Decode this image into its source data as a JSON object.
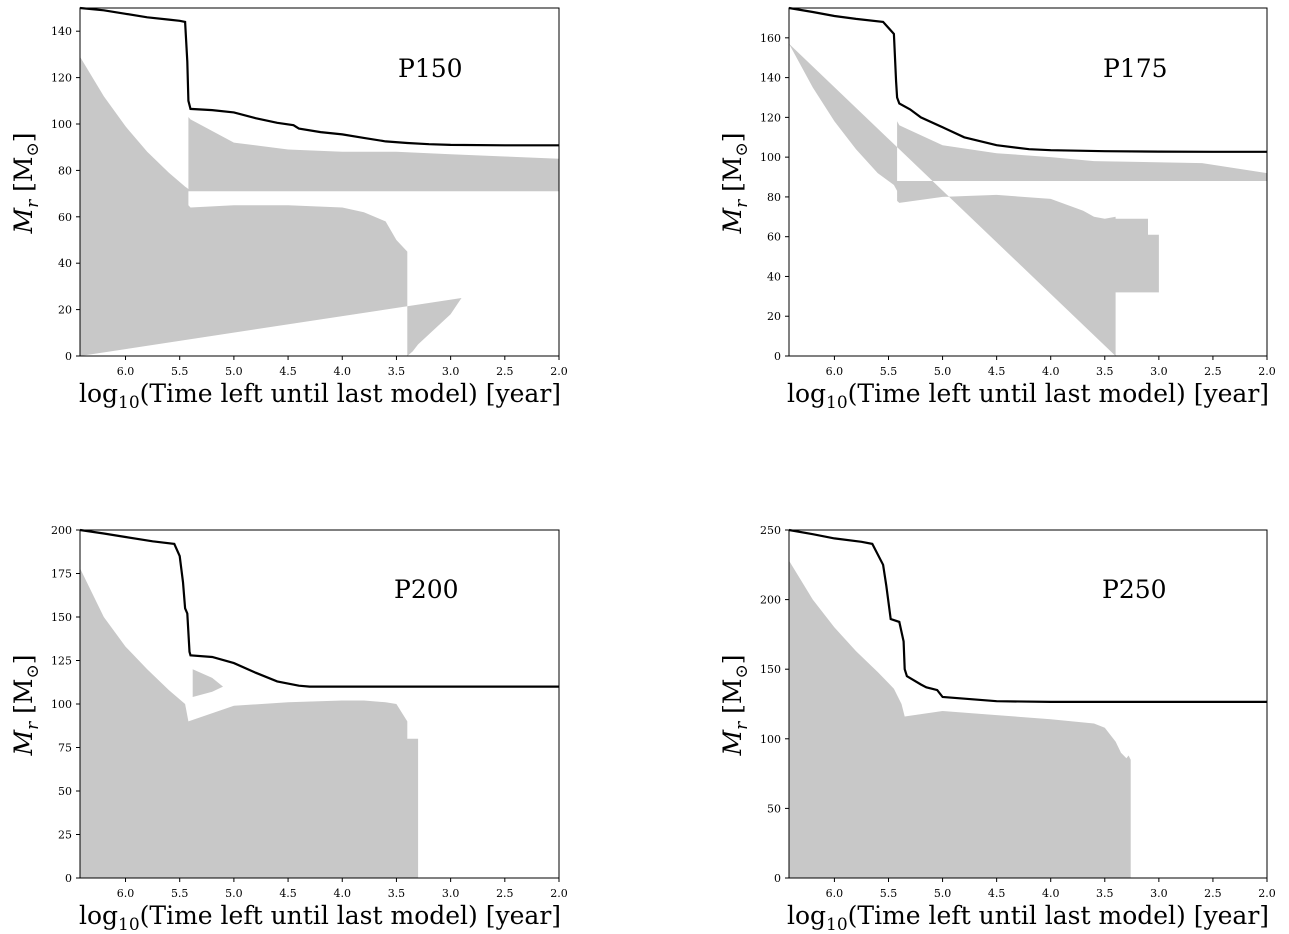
{
  "chart_data": [
    {
      "type": "area",
      "title": "P150",
      "xlabel": "log10(Time left until last model) [year]",
      "ylabel": "Mr [M⊙]",
      "xlim": [
        6.42,
        2.0
      ],
      "ylim": [
        0,
        150
      ],
      "xticks": [
        "6.0",
        "5.5",
        "5.0",
        "4.5",
        "4.0",
        "3.5",
        "3.0",
        "2.5",
        "2.0"
      ],
      "yticks": [
        "0",
        "20",
        "40",
        "60",
        "80",
        "100",
        "120",
        "140"
      ],
      "fill_color": "#c8c8c8",
      "line_color": "#000000",
      "series": [
        {
          "x": [
            6.42,
            6.2,
            6.0,
            5.8,
            5.6,
            5.5,
            5.45,
            5.43,
            5.42,
            5.4,
            5.2,
            5.0,
            4.8,
            4.6,
            4.45,
            4.4,
            4.2,
            4.0,
            3.8,
            3.6,
            3.4,
            3.2,
            3.0,
            2.5,
            2.0
          ],
          "y": [
            150,
            149,
            147.5,
            146,
            145,
            144.5,
            144,
            127,
            110,
            106.5,
            106,
            105,
            102.5,
            100.5,
            99.5,
            98,
            96.5,
            95.5,
            94,
            92.5,
            91.8,
            91.3,
            91,
            90.8,
            90.8
          ]
        },
        {
          "x": [
            6.42,
            6.2,
            6.0,
            5.8,
            5.6,
            5.45,
            5.42,
            5.42,
            5.4,
            5.0,
            4.5,
            4.0,
            3.5,
            3.0,
            2.5,
            2.0,
            2.0,
            5.42,
            5.42,
            5.4,
            5.0,
            4.5,
            4.0,
            3.8,
            3.6,
            3.5,
            3.4,
            3.4,
            3.35,
            3.3,
            3.0,
            2.9,
            6.42
          ],
          "y": [
            129,
            112,
            99,
            88,
            79,
            73,
            72,
            103,
            102,
            92,
            89,
            88,
            88,
            87,
            86,
            85,
            71,
            71,
            65,
            64,
            65,
            65,
            64,
            62,
            58,
            50,
            45,
            0,
            2,
            5,
            18,
            25,
            0
          ]
        }
      ]
    },
    {
      "type": "area",
      "title": "P175",
      "xlabel": "log10(Time left until last model) [year]",
      "ylabel": "Mr [M⊙]",
      "xlim": [
        6.42,
        2.0
      ],
      "ylim": [
        0,
        175
      ],
      "xticks": [
        "6.0",
        "5.5",
        "5.0",
        "4.5",
        "4.0",
        "3.5",
        "3.0",
        "2.5",
        "2.0"
      ],
      "yticks": [
        "0",
        "20",
        "40",
        "60",
        "80",
        "100",
        "120",
        "140",
        "160"
      ],
      "fill_color": "#c8c8c8",
      "line_color": "#000000",
      "series": [
        {
          "x": [
            6.42,
            6.2,
            6.0,
            5.8,
            5.55,
            5.45,
            5.43,
            5.42,
            5.4,
            5.3,
            5.2,
            5.0,
            4.8,
            4.5,
            4.2,
            4.0,
            3.5,
            3.0,
            2.5,
            2.0
          ],
          "y": [
            175,
            173,
            171,
            169.5,
            168,
            162,
            138,
            130,
            127,
            124,
            120,
            115,
            110,
            106,
            104,
            103.5,
            103,
            102.8,
            102.7,
            102.7
          ]
        },
        {
          "x": [
            6.42,
            6.2,
            6.0,
            5.8,
            5.6,
            5.45,
            5.42,
            5.42,
            5.4,
            5.0,
            4.5,
            4.0,
            3.8,
            3.6,
            2.6,
            2.0,
            2.0,
            5.42,
            5.42,
            5.4,
            5.0,
            4.5,
            4.0,
            3.7,
            3.6,
            3.5,
            3.4,
            3.4,
            3.1,
            3.1,
            3.0,
            3.0,
            3.4,
            3.4
          ],
          "y": [
            157,
            135,
            118,
            104,
            92,
            86,
            83,
            118,
            116,
            106,
            102,
            100,
            99,
            98,
            97,
            92,
            88,
            88,
            78,
            77,
            80,
            81,
            79,
            73,
            70,
            69,
            70,
            69,
            69,
            61,
            61,
            32,
            32,
            0
          ]
        }
      ]
    },
    {
      "type": "area",
      "title": "P200",
      "xlabel": "log10(Time left until last model) [year]",
      "ylabel": "Mr [M⊙]",
      "xlim": [
        6.42,
        2.0
      ],
      "ylim": [
        0,
        200
      ],
      "xticks": [
        "6.0",
        "5.5",
        "5.0",
        "4.5",
        "4.0",
        "3.5",
        "3.0",
        "2.5",
        "2.0"
      ],
      "yticks": [
        "0",
        "25",
        "50",
        "75",
        "100",
        "125",
        "150",
        "175",
        "200"
      ],
      "fill_color": "#c8c8c8",
      "line_color": "#000000",
      "series": [
        {
          "x": [
            6.42,
            6.2,
            6.0,
            5.75,
            5.55,
            5.5,
            5.47,
            5.45,
            5.43,
            5.41,
            5.4,
            5.2,
            5.0,
            4.8,
            4.6,
            4.4,
            4.3,
            4.0,
            3.5,
            3.0,
            2.5,
            2.0
          ],
          "y": [
            200,
            198,
            196,
            193.5,
            192,
            185,
            170,
            155,
            152,
            130,
            128,
            127,
            123.5,
            118,
            113,
            110.5,
            110,
            110,
            110,
            110,
            110,
            110
          ]
        },
        {
          "x": [
            6.42,
            6.2,
            6.0,
            5.8,
            5.6,
            5.45,
            5.42,
            5.0,
            4.5,
            4.0,
            3.8,
            3.6,
            3.5,
            3.4,
            3.4,
            3.3,
            3.3,
            6.42
          ],
          "y": [
            178,
            150,
            133,
            120,
            108,
            100,
            90,
            99,
            101,
            102,
            102,
            101,
            100,
            90,
            80,
            80,
            0,
            0
          ]
        },
        {
          "x": [
            5.38,
            5.2,
            5.1,
            5.2,
            5.38
          ],
          "y": [
            120,
            115,
            110,
            107,
            104
          ]
        }
      ]
    },
    {
      "type": "area",
      "title": "P250",
      "xlabel": "log10(Time left until last model) [year]",
      "ylabel": "Mr [M⊙]",
      "xlim": [
        6.42,
        2.0
      ],
      "ylim": [
        0,
        250
      ],
      "xticks": [
        "6.0",
        "5.5",
        "5.0",
        "4.5",
        "4.0",
        "3.5",
        "3.0",
        "2.5",
        "2.0"
      ],
      "yticks": [
        "0",
        "50",
        "100",
        "150",
        "200",
        "250"
      ],
      "fill_color": "#c8c8c8",
      "line_color": "#000000",
      "series": [
        {
          "x": [
            6.42,
            6.2,
            6.0,
            5.75,
            5.65,
            5.55,
            5.52,
            5.48,
            5.4,
            5.36,
            5.35,
            5.33,
            5.2,
            5.15,
            5.1,
            5.05,
            5.0,
            4.5,
            4.0,
            3.5,
            3.0,
            2.5,
            2.0
          ],
          "y": [
            250,
            247,
            244,
            241.5,
            240,
            225,
            210,
            186,
            184,
            170,
            150,
            145,
            139,
            137,
            136,
            135,
            130,
            127,
            126.5,
            126.5,
            126.5,
            126.5,
            126.5
          ]
        },
        {
          "x": [
            6.42,
            6.2,
            6.0,
            5.8,
            5.6,
            5.45,
            5.38,
            5.35,
            5.0,
            4.5,
            4.0,
            3.6,
            3.5,
            3.4,
            3.35,
            3.3,
            3.28,
            3.26,
            3.26,
            6.42
          ],
          "y": [
            228,
            200,
            180,
            163,
            148,
            136,
            125,
            116,
            120,
            117,
            114,
            111,
            108,
            98,
            90,
            86,
            88,
            85,
            0,
            0
          ]
        }
      ]
    }
  ]
}
